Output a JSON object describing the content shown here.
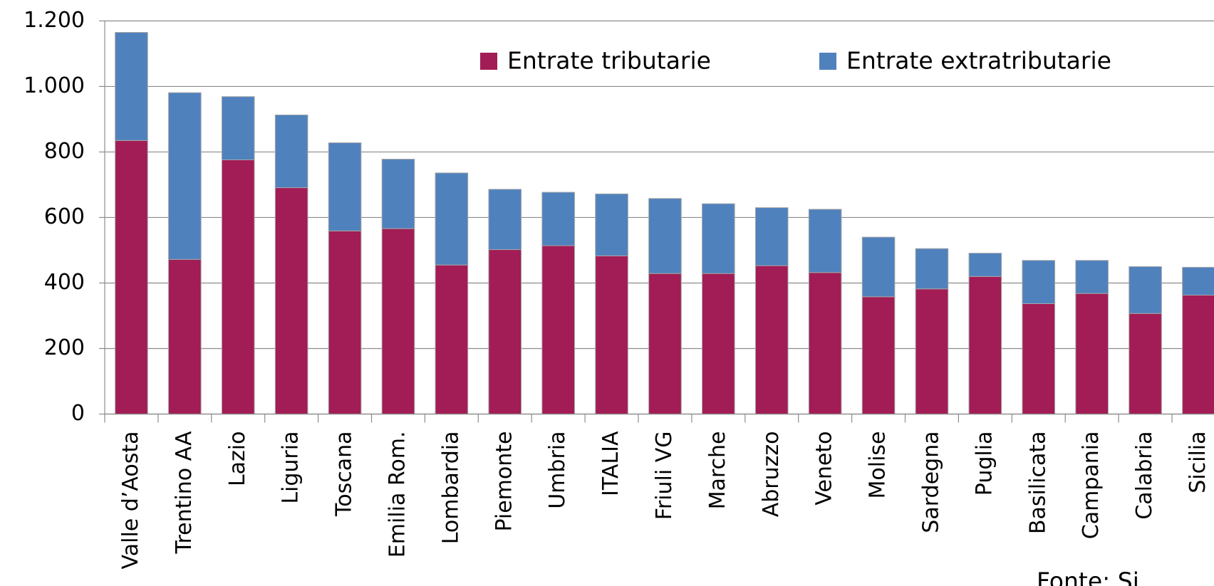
{
  "chart_data": {
    "type": "stacked_bar",
    "categories": [
      "Valle d’Aosta",
      "Trentino AA",
      "Lazio",
      "Liguria",
      "Toscana",
      "Emilia Rom.",
      "Lombardia",
      "Piemonte",
      "Umbria",
      "ITALIA",
      "Friuli VG",
      "Marche",
      "Abruzzo",
      "Veneto",
      "Molise",
      "Sardegna",
      "Puglia",
      "Basilicata",
      "Campania",
      "Calabria",
      "Sicilia"
    ],
    "series": [
      {
        "name": "Entrate tributarie",
        "color": "#a21c55",
        "values": [
          835,
          472,
          776,
          691,
          559,
          566,
          455,
          502,
          514,
          483,
          429,
          429,
          453,
          432,
          358,
          382,
          420,
          337,
          368,
          307,
          363
        ]
      },
      {
        "name": "Entrate extratributarie",
        "color": "#4f81bd",
        "values": [
          330,
          509,
          193,
          222,
          269,
          212,
          281,
          184,
          163,
          189,
          229,
          213,
          177,
          193,
          182,
          123,
          71,
          132,
          101,
          143,
          85
        ]
      }
    ],
    "ylim": [
      0,
      1200
    ],
    "yticks": [
      0,
      200,
      400,
      600,
      800,
      {
        "value": 1000,
        "label": "1.000"
      },
      {
        "value": 1200,
        "label": "1.200"
      }
    ],
    "grid": true,
    "legend": "top-right",
    "annotation": "Fonte: Si"
  }
}
